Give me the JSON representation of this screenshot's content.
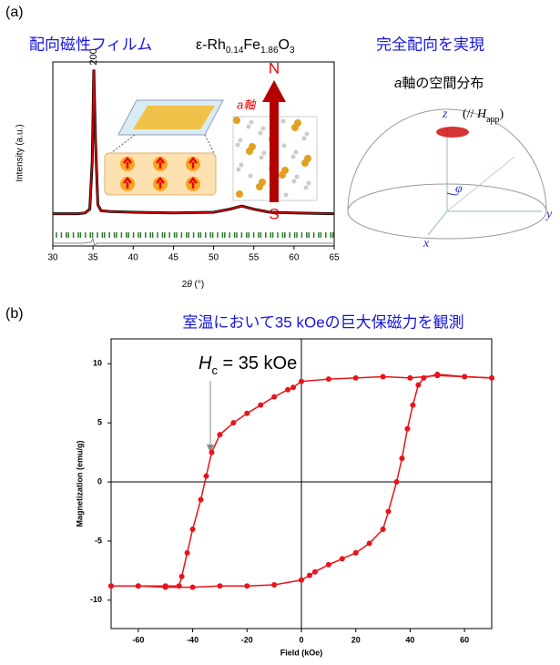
{
  "panel_labels": [
    "(a)",
    "(b)"
  ],
  "chart_data": [
    {
      "type": "line",
      "title": "配向磁性フィルム",
      "subtitle_parts": [
        "ε-Rh",
        "0.14",
        "Fe",
        "1.86",
        "O",
        "3"
      ],
      "ylabel": "Intensity (a.u.)",
      "xlabel_parts": [
        "2",
        "θ",
        " (°)"
      ],
      "annotation": "200",
      "xlim": [
        30,
        65
      ],
      "xticks": [
        30,
        35,
        40,
        45,
        50,
        55,
        60,
        65
      ],
      "ylim": [
        -15,
        105
      ],
      "series": [
        {
          "color": "#e00000",
          "x": [
            30,
            33,
            34,
            34.6,
            34.9,
            35.1,
            35.3,
            35.6,
            36,
            37,
            40,
            45,
            50,
            52,
            53.5,
            55,
            57,
            60,
            65
          ],
          "values": [
            6,
            6,
            6.5,
            9,
            40,
            100,
            55,
            12,
            8,
            7.5,
            7,
            6.5,
            7,
            9,
            11,
            9,
            7,
            6.5,
            6
          ]
        }
      ],
      "labels": {
        "a_axis": "a軸",
        "north": "N",
        "south": "S"
      }
    },
    {
      "type": "line",
      "title": "室温において35 kOeの巨大保磁力を観測",
      "annotation_parts": [
        "H",
        "c",
        " = 35 kOe"
      ],
      "xlabel": "Field (kOe)",
      "ylabel": "Magnetization (emu/g)",
      "xlim": [
        -70,
        70
      ],
      "xticks": [
        -60,
        -40,
        -20,
        0,
        20,
        40,
        60
      ],
      "ylim": [
        -12.4,
        12.1
      ],
      "yticks": [
        -10,
        -5,
        0,
        5,
        10
      ],
      "series": [
        {
          "color": "#e8141a",
          "x": [
            70,
            60,
            50,
            40,
            30,
            20,
            10,
            0,
            -3,
            -5,
            -10,
            -15,
            -20,
            -25,
            -30,
            -33,
            -35,
            -37,
            -40,
            -42,
            -44,
            -45,
            -50,
            -60,
            -70
          ],
          "values": [
            8.8,
            8.9,
            9,
            8.8,
            8.9,
            8.8,
            8.7,
            8.5,
            8,
            7.8,
            7.2,
            6.5,
            5.8,
            5,
            4,
            2.5,
            0.5,
            -1.5,
            -4,
            -6,
            -8,
            -8.8,
            -8.8,
            -8.8,
            -8.8
          ]
        },
        {
          "color": "#e8141a",
          "x": [
            -70,
            -60,
            -50,
            -40,
            -30,
            -20,
            -10,
            0,
            3,
            5,
            10,
            15,
            20,
            25,
            30,
            32,
            35,
            37,
            39,
            41,
            43,
            45,
            50,
            60,
            70
          ],
          "values": [
            -8.8,
            -8.8,
            -8.9,
            -8.9,
            -8.8,
            -8.8,
            -8.7,
            -8.3,
            -7.9,
            -7.6,
            -7,
            -6.5,
            -6,
            -5.2,
            -4,
            -2.5,
            0,
            2,
            4.5,
            6.5,
            8.2,
            8.8,
            9.1,
            8.9,
            8.8
          ]
        }
      ]
    }
  ],
  "diagram": {
    "title": "完全配向を実現",
    "subtitle_parts": [
      "a",
      "軸の空間分布"
    ],
    "z": "z",
    "field_parts": [
      "(// ",
      "H",
      "app",
      ")"
    ],
    "phi": "φ",
    "x": "x",
    "y": "y"
  }
}
